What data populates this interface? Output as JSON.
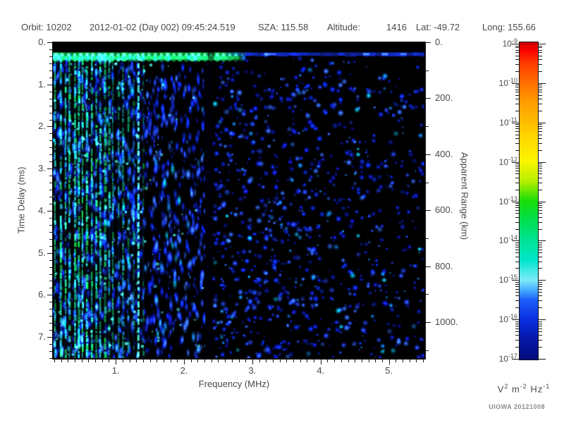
{
  "header": {
    "segments": [
      "Orbit: 10202",
      "2012-01-02 (Day 002) 09:45:24.519",
      "SZA: 115.58",
      "Altitude:",
      "1416",
      "Lat: -49.72",
      "Long: 155.66"
    ]
  },
  "axes": {
    "x": {
      "title": "Frequency (MHz)",
      "major_tick_labels": [
        "1.",
        "2.",
        "3.",
        "4.",
        "5."
      ],
      "major_tick_values": [
        1,
        2,
        3,
        4,
        5
      ],
      "minor_step_mhz": 0.1,
      "range_mhz": [
        0.08,
        5.52
      ]
    },
    "y_left": {
      "title": "Time Delay (ms)",
      "major_tick_labels": [
        "0.",
        "1.",
        "2.",
        "3.",
        "4.",
        "5.",
        "6.",
        "7."
      ],
      "major_tick_values": [
        0,
        1,
        2,
        3,
        4,
        5,
        6,
        7
      ],
      "minor_divisions_per_major": 6,
      "range_ms": [
        0,
        7.5
      ]
    },
    "y_right": {
      "title": "Apparent Range (km)",
      "major_tick_labels": [
        "0.",
        "200.",
        "400.",
        "600.",
        "800.",
        "1000."
      ],
      "major_tick_values": [
        0,
        200,
        400,
        600,
        800,
        1000
      ],
      "minor_step_km": 100,
      "range_km": [
        0,
        1128
      ]
    }
  },
  "colorbar": {
    "exponents": [
      -9,
      -10,
      -11,
      -12,
      -13,
      -14,
      -15,
      -16,
      -17
    ],
    "base": "10",
    "unit_parts": [
      {
        "t": "V"
      },
      {
        "t": "2",
        "sup": true
      },
      {
        "t": " m"
      },
      {
        "t": "-2",
        "sup": true
      },
      {
        "t": " Hz"
      },
      {
        "t": "-1",
        "sup": true
      }
    ],
    "gradient_stops": [
      [
        "0%",
        "#c80000"
      ],
      [
        "2.5%",
        "#fa0000"
      ],
      [
        "6.25%",
        "#ff3800"
      ],
      [
        "12.5%",
        "#ff6c00"
      ],
      [
        "18.75%",
        "#ff9c00"
      ],
      [
        "25%",
        "#ffbc00"
      ],
      [
        "31.25%",
        "#ffdc00"
      ],
      [
        "37.5%",
        "#fbf500"
      ],
      [
        "43.75%",
        "#b8ee00"
      ],
      [
        "50%",
        "#18dd08"
      ],
      [
        "56.25%",
        "#00df52"
      ],
      [
        "62.5%",
        "#00e393"
      ],
      [
        "68.75%",
        "#00e6cd"
      ],
      [
        "75%",
        "#7feaf9"
      ],
      [
        "78.5%",
        "#3fa2ff"
      ],
      [
        "81.25%",
        "#1b5ef8"
      ],
      [
        "87.5%",
        "#0b2ee0"
      ],
      [
        "93.75%",
        "#0517a6"
      ],
      [
        "100%",
        "#020c7e"
      ]
    ]
  },
  "footer": {
    "credit": "UIOWA 20121008"
  },
  "chart_data": {
    "type": "heatmap",
    "title": "Radar sounder ionogram spectrogram",
    "xlabel": "Frequency (MHz)",
    "x_range_mhz": [
      0.08,
      5.52
    ],
    "ylabel": "Time Delay (ms)",
    "y_range_ms": [
      0,
      7.5
    ],
    "y2label": "Apparent Range (km)",
    "y2_range_km": [
      0,
      1128
    ],
    "zlabel": "V^2 m^-2 Hz^-1",
    "z_scale": "log10",
    "z_range": [
      1e-17,
      1e-09
    ],
    "blank_band_ms": [
      0,
      0.24
    ],
    "transmit_band_ms": [
      0.24,
      0.38
    ],
    "transmit_band_green_until_mhz": 2.55,
    "transmit_band_fade_until_mhz": 2.95,
    "absorption_band_mhz": [
      2.31,
      2.42
    ],
    "stripes": {
      "x_start_mhz": 0.1,
      "x_end_mhz": 1.45,
      "spacing_mhz": 0.075,
      "description": "vertical green/cyan electron plasma harmonic stripes spanning all delays"
    },
    "bright_stripe_mhz": 1.32,
    "noise_regions": [
      {
        "x_mhz": [
          0.08,
          1.38
        ],
        "density": 0.85,
        "streaky": true
      },
      {
        "x_mhz": [
          1.38,
          2.31
        ],
        "density": 0.72,
        "streaky": true
      },
      {
        "x_mhz": [
          2.31,
          2.42
        ],
        "density": 0.03,
        "streaky": false
      },
      {
        "x_mhz": [
          2.42,
          4.0
        ],
        "density": 0.55,
        "streaky": false
      },
      {
        "x_mhz": [
          4.0,
          5.52
        ],
        "density": 0.33,
        "streaky": false
      }
    ],
    "features": [
      "black band at 0-0.24 ms (no reception during transmit blanking)",
      "bright green scalloped band at ~0.3 ms from 0.1 to ~2.8 MHz, continuing as blue line to 5.5 MHz",
      "dense vertical harmonic stripes 0.1-1.45 MHz, brightest below 0.7 MHz",
      "bright dashed cyan stripe near 1.32 MHz",
      "black vertical absorption gap at 2.31-2.42 MHz",
      "diffuse blue speckle noise (10^-16..10^-15), sparser above 4 MHz"
    ]
  }
}
